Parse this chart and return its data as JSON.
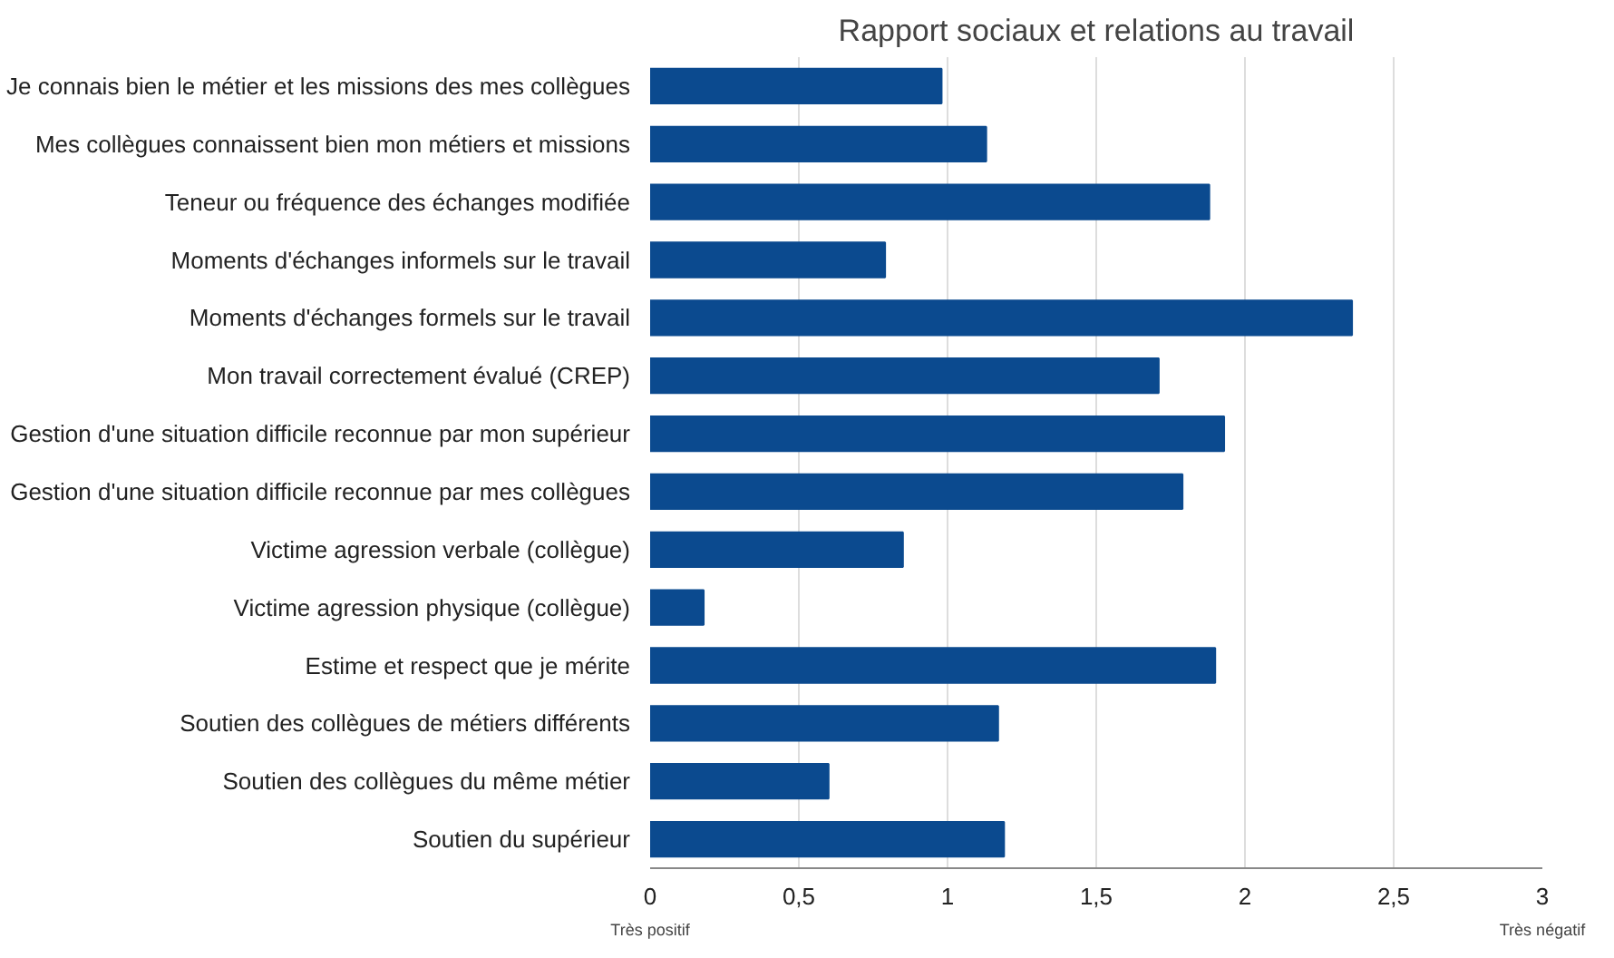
{
  "chart_data": {
    "type": "bar",
    "orientation": "horizontal",
    "title": "Rapport sociaux et relations au travail",
    "categories": [
      "Je connais bien le métier et les missions des mes collègues",
      "Mes collègues connaissent bien mon métiers et missions",
      "Teneur ou fréquence des échanges modifiée",
      "Moments d'échanges informels sur le travail",
      "Moments d'échanges formels sur le travail",
      "Mon travail correctement évalué (CREP)",
      "Gestion d'une situation difficile reconnue par mon supérieur",
      "Gestion d'une situation difficile reconnue par mes collègues",
      "Victime agression verbale (collègue)",
      "Victime agression physique (collègue)",
      "Estime et respect que je mérite",
      "Soutien des collègues de métiers différents",
      "Soutien des collègues du même métier",
      "Soutien du supérieur"
    ],
    "values": [
      0.98,
      1.13,
      1.88,
      0.79,
      2.36,
      1.71,
      1.93,
      1.79,
      0.85,
      0.18,
      1.9,
      1.17,
      0.6,
      1.19
    ],
    "color": "#0b4a8f",
    "xlim": [
      0,
      3
    ],
    "xticks": [
      0,
      {
        "value": 0.5,
        "label": "0,5"
      },
      1,
      {
        "value": 1.5,
        "label": "1,5"
      },
      2,
      {
        "value": 2.5,
        "label": "2,5"
      },
      3
    ],
    "grid": "x",
    "annotations": [
      "Très positif",
      "Très négatif"
    ]
  }
}
